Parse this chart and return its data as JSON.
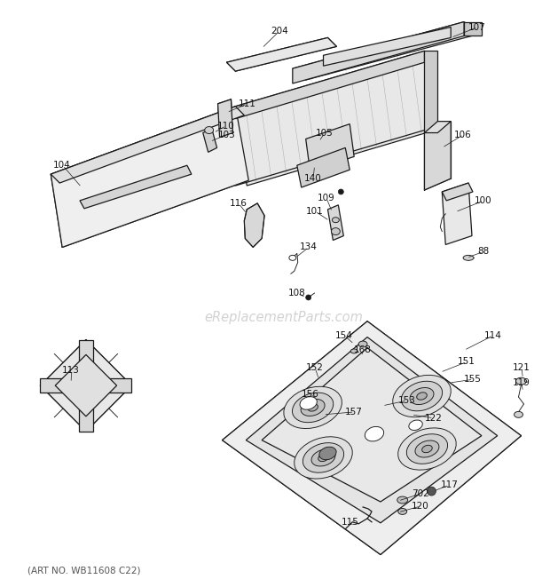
{
  "bg_color": "#ffffff",
  "line_color": "#1a1a1a",
  "label_color": "#111111",
  "watermark": "eReplacementParts.com",
  "watermark_color": "#bbbbbb",
  "art_no": "(ART NO. WB11608 C22)",
  "fig_width": 6.2,
  "fig_height": 6.61,
  "dpi": 100
}
